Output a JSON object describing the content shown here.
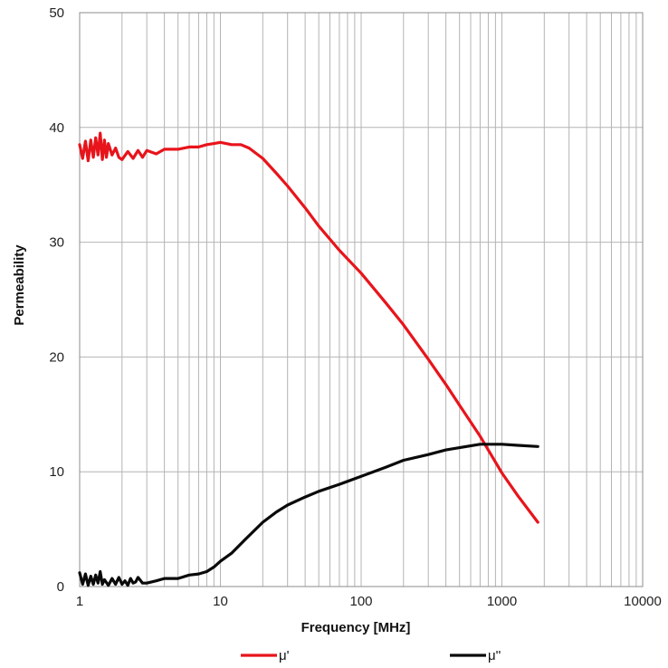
{
  "chart_data": {
    "type": "line",
    "xlabel": "Frequency [MHz]",
    "ylabel": "Permeability",
    "x_scale": "log",
    "xlim": [
      1,
      10000
    ],
    "ylim": [
      0,
      50
    ],
    "x_ticks": [
      "1",
      "10",
      "100",
      "1000",
      "10000"
    ],
    "y_ticks": [
      "0",
      "10",
      "20",
      "30",
      "40",
      "50"
    ],
    "grid": true,
    "legend_position": "bottom",
    "series": [
      {
        "name": "μ'",
        "color": "#e8141b",
        "x": [
          1,
          1.05,
          1.1,
          1.15,
          1.2,
          1.25,
          1.3,
          1.35,
          1.4,
          1.45,
          1.5,
          1.55,
          1.6,
          1.7,
          1.8,
          1.9,
          2,
          2.2,
          2.4,
          2.6,
          2.8,
          3,
          3.5,
          4,
          5,
          6,
          7,
          8,
          9,
          10,
          12,
          14,
          16,
          20,
          25,
          30,
          40,
          50,
          70,
          100,
          150,
          200,
          300,
          400,
          500,
          700,
          1000,
          1300,
          1800
        ],
        "y": [
          38.5,
          37.3,
          38.8,
          37.1,
          38.9,
          37.4,
          39.1,
          37.6,
          39.5,
          37.2,
          38.9,
          37.4,
          38.6,
          37.6,
          38.2,
          37.4,
          37.2,
          37.9,
          37.3,
          38.0,
          37.4,
          38.0,
          37.7,
          38.1,
          38.1,
          38.3,
          38.3,
          38.5,
          38.6,
          38.7,
          38.5,
          38.5,
          38.2,
          37.3,
          36.0,
          34.9,
          33.0,
          31.4,
          29.3,
          27.3,
          24.7,
          22.8,
          19.8,
          17.6,
          15.8,
          13.1,
          9.9,
          7.9,
          5.6
        ]
      },
      {
        "name": "μ''",
        "color": "#0a0a0a",
        "x": [
          1,
          1.05,
          1.1,
          1.15,
          1.2,
          1.25,
          1.3,
          1.35,
          1.4,
          1.45,
          1.5,
          1.6,
          1.7,
          1.8,
          1.9,
          2,
          2.1,
          2.2,
          2.3,
          2.4,
          2.5,
          2.6,
          2.8,
          3,
          3.5,
          4,
          5,
          6,
          7,
          8,
          9,
          10,
          12,
          15,
          20,
          25,
          30,
          40,
          50,
          70,
          100,
          150,
          200,
          300,
          400,
          500,
          700,
          1000,
          1300,
          1800
        ],
        "y": [
          1.2,
          0.2,
          1.1,
          0.1,
          0.9,
          0.2,
          1.0,
          0.3,
          1.3,
          0.2,
          0.6,
          0.1,
          0.7,
          0.2,
          0.8,
          0.2,
          0.5,
          0.1,
          0.7,
          0.3,
          0.4,
          0.8,
          0.3,
          0.3,
          0.5,
          0.7,
          0.7,
          1.0,
          1.1,
          1.3,
          1.7,
          2.2,
          2.9,
          4.1,
          5.6,
          6.5,
          7.1,
          7.8,
          8.3,
          8.9,
          9.6,
          10.4,
          11.0,
          11.5,
          11.9,
          12.1,
          12.4,
          12.4,
          12.3,
          12.2
        ]
      }
    ]
  }
}
